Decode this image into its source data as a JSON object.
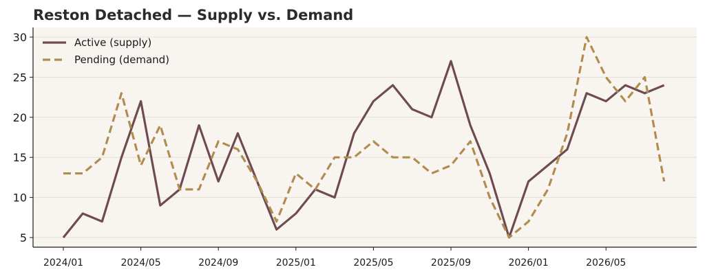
{
  "chart_data": {
    "type": "line",
    "title": "Reston Detached — Supply vs. Demand",
    "xlabel": "",
    "ylabel": "",
    "x": [
      "2024/01",
      "2024/02",
      "2024/03",
      "2024/04",
      "2024/05",
      "2024/06",
      "2024/07",
      "2024/08",
      "2024/09",
      "2024/10",
      "2024/11",
      "2024/12",
      "2025/01",
      "2025/02",
      "2025/03",
      "2025/04",
      "2025/05",
      "2025/06",
      "2025/07",
      "2025/08",
      "2025/09",
      "2025/10",
      "2025/11",
      "2025/12",
      "2026/01",
      "2026/02",
      "2026/03",
      "2026/04",
      "2026/05",
      "2026/06",
      "2026/07",
      "2026/08"
    ],
    "x_ticks": [
      "2024/01",
      "2024/05",
      "2024/09",
      "2025/01",
      "2025/05",
      "2025/09",
      "2026/01",
      "2026/05"
    ],
    "y_ticks": [
      5,
      10,
      15,
      20,
      25,
      30
    ],
    "ylim": [
      3.8,
      31.2
    ],
    "grid": "horizontal",
    "legend_position": "top-left",
    "series": [
      {
        "name": "Active (supply)",
        "color": "#6e4b4f",
        "style": "solid",
        "values": [
          5,
          8,
          7,
          15,
          22,
          9,
          11,
          19,
          12,
          18,
          12,
          6,
          8,
          11,
          10,
          18,
          22,
          24,
          21,
          20,
          27,
          19,
          13,
          5,
          12,
          14,
          16,
          23,
          22,
          24,
          23,
          24
        ]
      },
      {
        "name": "Pending (demand)",
        "color": "#b08d4f",
        "style": "dashed",
        "values": [
          13,
          13,
          15,
          23,
          14,
          19,
          11,
          11,
          17,
          16,
          12,
          7,
          13,
          11,
          15,
          15,
          17,
          15,
          15,
          13,
          14,
          17,
          10,
          5,
          7,
          11,
          18,
          30,
          25,
          22,
          25,
          12
        ]
      }
    ],
    "colors": {
      "plot_background": "#f8f5f0",
      "grid": "#e2ddd6",
      "axis": "#1a1a1a"
    }
  }
}
